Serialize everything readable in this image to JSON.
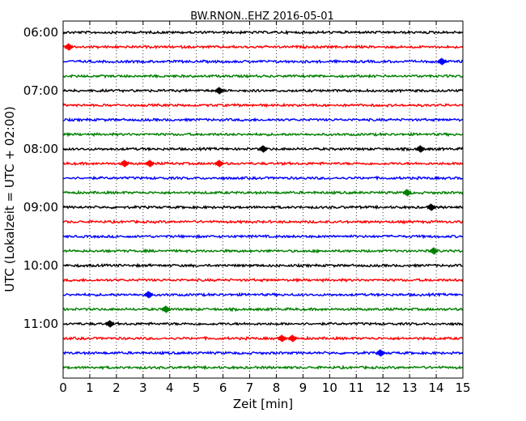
{
  "chart_data": {
    "type": "line",
    "title": "BW.RNON..EHZ 2016-05-01",
    "xlabel": "Zeit  [min]",
    "ylabel": "UTC (Lokalzeit = UTC + 02:00)",
    "xlim": [
      0,
      15
    ],
    "xticks": [
      "0",
      "1",
      "2",
      "3",
      "4",
      "5",
      "6",
      "7",
      "8",
      "9",
      "10",
      "11",
      "12",
      "13",
      "14",
      "15"
    ],
    "yticks": [
      "06:00",
      "07:00",
      "08:00",
      "09:00",
      "10:00",
      "11:00"
    ],
    "grid": "vertical dotted",
    "trace_colors": [
      "#000000",
      "#ff0000",
      "#0000ff",
      "#008000"
    ],
    "traces": [
      {
        "start": "06:00",
        "color": "#000000"
      },
      {
        "start": "06:15",
        "color": "#ff0000",
        "events": [
          0.2
        ]
      },
      {
        "start": "06:30",
        "color": "#0000ff",
        "events": [
          14.2
        ]
      },
      {
        "start": "06:45",
        "color": "#008000"
      },
      {
        "start": "07:00",
        "color": "#000000",
        "events": [
          5.85
        ]
      },
      {
        "start": "07:15",
        "color": "#ff0000"
      },
      {
        "start": "07:30",
        "color": "#0000ff"
      },
      {
        "start": "07:45",
        "color": "#008000"
      },
      {
        "start": "08:00",
        "color": "#000000",
        "events": [
          7.5,
          13.4
        ]
      },
      {
        "start": "08:15",
        "color": "#ff0000",
        "events": [
          2.3,
          3.25,
          5.85
        ]
      },
      {
        "start": "08:30",
        "color": "#0000ff"
      },
      {
        "start": "08:45",
        "color": "#008000",
        "events": [
          12.9
        ]
      },
      {
        "start": "09:00",
        "color": "#000000",
        "events": [
          13.8
        ]
      },
      {
        "start": "09:15",
        "color": "#ff0000"
      },
      {
        "start": "09:30",
        "color": "#0000ff"
      },
      {
        "start": "09:45",
        "color": "#008000",
        "events": [
          13.9
        ]
      },
      {
        "start": "10:00",
        "color": "#000000"
      },
      {
        "start": "10:15",
        "color": "#ff0000"
      },
      {
        "start": "10:30",
        "color": "#0000ff",
        "events": [
          3.2
        ]
      },
      {
        "start": "10:45",
        "color": "#008000",
        "events": [
          3.85
        ]
      },
      {
        "start": "11:00",
        "color": "#000000",
        "events": [
          1.75
        ]
      },
      {
        "start": "11:15",
        "color": "#ff0000",
        "events": [
          8.2,
          8.6
        ]
      },
      {
        "start": "11:30",
        "color": "#0000ff",
        "events": [
          11.9
        ]
      },
      {
        "start": "11:45",
        "color": "#008000"
      }
    ]
  }
}
